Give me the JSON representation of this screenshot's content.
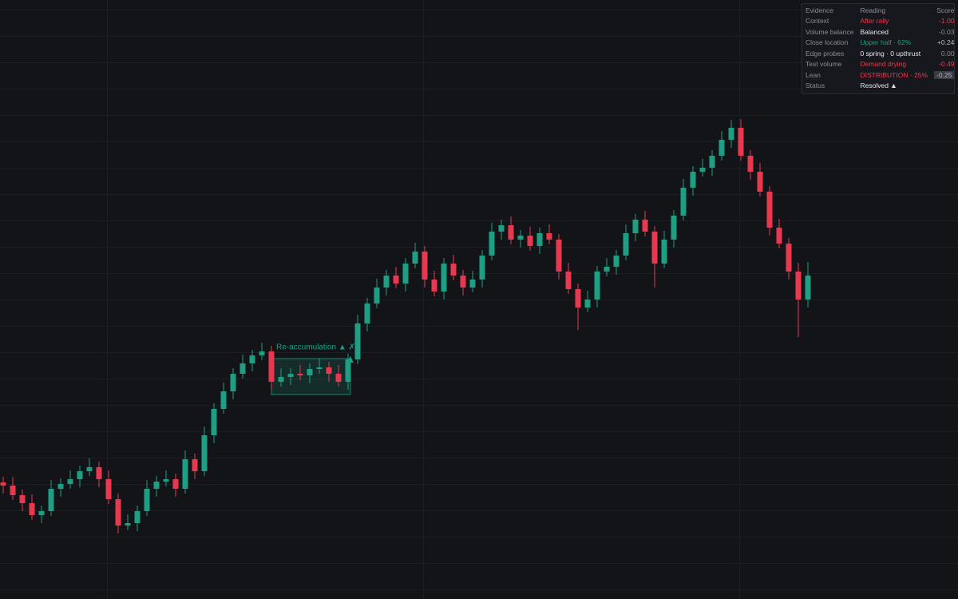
{
  "chart_data": {
    "type": "candlestick",
    "ylim": [
      0,
      75
    ],
    "up_color": "#1e9e83",
    "down_color": "#e8384f",
    "open": [
      14.6,
      14.2,
      13.0,
      12.0,
      10.5,
      11.0,
      13.8,
      14.4,
      15.0,
      16.0,
      16.5,
      15.0,
      12.5,
      9.2,
      9.5,
      11.0,
      13.8,
      14.7,
      15.0,
      13.8,
      17.5,
      16.0,
      20.5,
      23.8,
      26.0,
      28.2,
      29.5,
      30.5,
      31.0,
      27.2,
      27.8,
      28.2,
      28.0,
      28.8,
      29.0,
      28.2,
      27.2,
      30.0,
      34.5,
      37.0,
      39.0,
      40.5,
      39.5,
      42.0,
      43.5,
      40.0,
      38.5,
      42.0,
      40.5,
      39.0,
      40.0,
      43.0,
      46.0,
      46.8,
      45.0,
      45.5,
      44.2,
      45.8,
      45.0,
      41.0,
      38.8,
      36.5,
      37.5,
      41.0,
      41.6,
      43.0,
      45.8,
      47.5,
      46.0,
      42.0,
      45.0,
      48.0,
      51.5,
      53.5,
      54.0,
      55.5,
      57.5,
      59.0,
      55.5,
      53.5,
      51.0,
      46.5,
      44.5,
      41.0,
      37.5
    ],
    "high": [
      15.3,
      15.3,
      13.7,
      13.1,
      11.7,
      14.9,
      15.1,
      16.1,
      16.7,
      17.6,
      17.2,
      16.1,
      13.2,
      10.6,
      11.7,
      14.9,
      15.4,
      16.1,
      15.7,
      18.6,
      18.2,
      21.6,
      24.5,
      27.1,
      28.9,
      30.6,
      31.2,
      32.1,
      31.7,
      28.9,
      28.9,
      29.3,
      29.5,
      30.1,
      29.7,
      29.3,
      30.7,
      35.6,
      37.7,
      40.1,
      41.2,
      41.6,
      42.7,
      44.6,
      44.2,
      41.1,
      42.7,
      43.1,
      41.2,
      41.1,
      43.7,
      47.1,
      47.5,
      47.9,
      46.2,
      46.6,
      46.5,
      46.9,
      45.7,
      42.1,
      39.5,
      38.6,
      41.7,
      42.7,
      43.7,
      46.9,
      48.2,
      48.6,
      46.7,
      46.1,
      48.7,
      52.6,
      54.2,
      55.1,
      56.2,
      58.6,
      60.0,
      60.1,
      56.2,
      54.6,
      51.7,
      47.6,
      45.2,
      42.1,
      42.2
    ],
    "low": [
      13.2,
      12.4,
      11.0,
      9.9,
      9.5,
      10.4,
      12.8,
      13.8,
      14.0,
      15.4,
      14.0,
      11.9,
      8.2,
      8.6,
      8.5,
      10.4,
      12.8,
      14.1,
      12.8,
      13.2,
      15.0,
      15.4,
      19.5,
      23.2,
      25.0,
      27.6,
      28.5,
      29.9,
      26.2,
      26.6,
      26.8,
      27.4,
      27.0,
      28.2,
      27.2,
      26.6,
      26.2,
      29.4,
      33.5,
      36.4,
      38.0,
      38.9,
      38.5,
      41.4,
      39.0,
      37.9,
      37.5,
      39.9,
      38.0,
      38.4,
      39.0,
      42.4,
      45.0,
      44.4,
      44.0,
      43.6,
      43.2,
      44.4,
      40.0,
      38.2,
      33.7,
      35.9,
      36.5,
      40.4,
      40.6,
      42.4,
      44.8,
      45.4,
      39.0,
      41.4,
      44.0,
      47.4,
      50.5,
      52.9,
      53.0,
      54.9,
      56.5,
      54.9,
      52.5,
      50.4,
      45.5,
      43.9,
      40.0,
      32.8,
      36.5
    ],
    "close": [
      14.2,
      13.0,
      12.0,
      10.5,
      11.0,
      13.8,
      14.4,
      15.0,
      16.0,
      16.5,
      15.0,
      12.5,
      9.2,
      9.5,
      11.0,
      13.8,
      14.7,
      15.0,
      13.8,
      17.5,
      16.0,
      20.5,
      23.8,
      26.0,
      28.2,
      29.5,
      30.5,
      31.0,
      27.2,
      27.8,
      28.2,
      28.0,
      28.8,
      29.0,
      28.2,
      27.2,
      30.0,
      34.5,
      37.0,
      39.0,
      40.5,
      39.5,
      42.0,
      43.5,
      40.0,
      38.5,
      42.0,
      40.5,
      39.0,
      40.0,
      43.0,
      46.0,
      46.8,
      45.0,
      45.5,
      44.2,
      45.8,
      45.0,
      41.0,
      38.8,
      36.5,
      37.5,
      41.0,
      41.6,
      43.0,
      45.8,
      47.5,
      46.0,
      42.0,
      45.0,
      48.0,
      51.5,
      53.5,
      54.0,
      55.5,
      57.5,
      59.0,
      55.5,
      53.5,
      51.0,
      46.5,
      44.5,
      41.0,
      37.5,
      40.5
    ],
    "annotation": {
      "text": "Re-accumulation ▲ ✗",
      "top": 30.1,
      "bottom": 25.6
    }
  },
  "panel": {
    "headers": [
      "Evidence",
      "Reading",
      "Score"
    ],
    "rows": [
      [
        "Context",
        "After rally",
        "-1.00"
      ],
      [
        "Volume balance",
        "Balanced",
        "-0.03"
      ],
      [
        "Close location",
        "Upper half · 62%",
        "+0.24"
      ],
      [
        "Edge probes",
        "0 spring · 0 upthrust",
        "0.00"
      ],
      [
        "Test volume",
        "Demand drying",
        "-0.49"
      ],
      [
        "Lean",
        "DISTRIBUTION · 25%",
        "-0.25"
      ],
      [
        "Status",
        "Resolved ▲"
      ]
    ]
  }
}
